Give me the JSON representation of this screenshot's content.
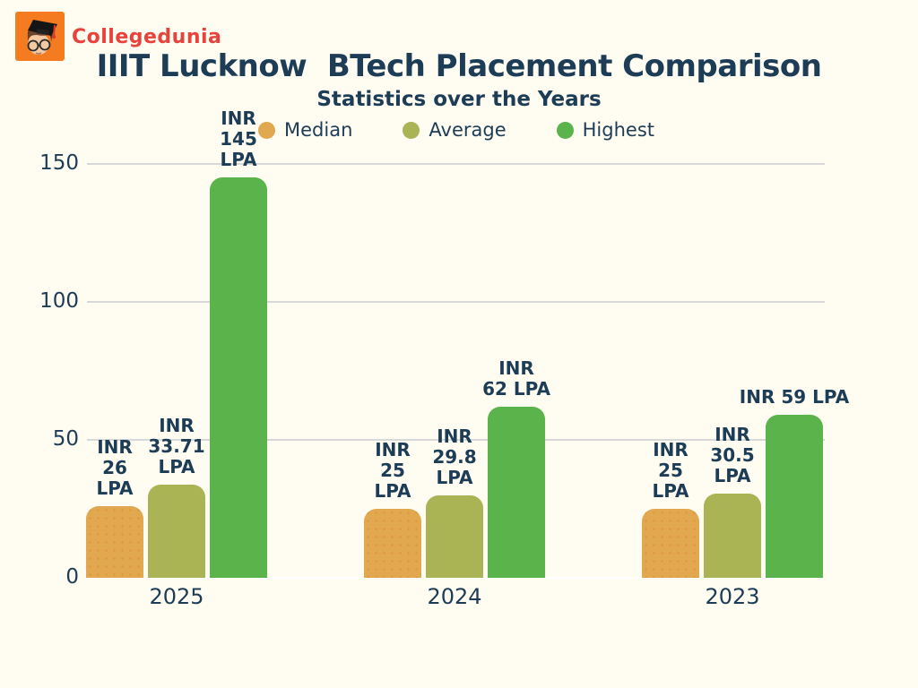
{
  "brand": {
    "name": "Collegedunia",
    "logo_bg": "#f57b20",
    "text_color": "#e8423c"
  },
  "header": {
    "title": "IIIT Lucknow  BTech Placement Comparison",
    "subtitle": "Statistics over the Years"
  },
  "colors": {
    "background": "#fffcf2",
    "text": "#1d3c55",
    "gridline": "#d8d8d8",
    "baseline": "#ffffff",
    "median": "#e2a84f",
    "average": "#abb454",
    "highest": "#5bb34c"
  },
  "chart_data": {
    "type": "bar",
    "title": "IIIT Lucknow  BTech Placement Comparison",
    "subtitle": "Statistics over the Years",
    "categories": [
      "2025",
      "2024",
      "2023"
    ],
    "series": [
      {
        "name": "Median",
        "color": "#e2a84f",
        "values": [
          26,
          25,
          25
        ],
        "labels": [
          [
            "INR",
            "26",
            "LPA"
          ],
          [
            "INR",
            "25",
            "LPA"
          ],
          [
            "INR",
            "25",
            "LPA"
          ]
        ]
      },
      {
        "name": "Average",
        "color": "#abb454",
        "values": [
          33.71,
          29.8,
          30.5
        ],
        "labels": [
          [
            "INR",
            "33.71",
            "LPA"
          ],
          [
            "INR",
            "29.8",
            "LPA"
          ],
          [
            "INR",
            "30.5",
            "LPA"
          ]
        ]
      },
      {
        "name": "Highest",
        "color": "#5bb34c",
        "values": [
          145,
          62,
          59
        ],
        "labels": [
          [
            "INR",
            "145",
            "LPA"
          ],
          [
            "INR",
            "62 LPA"
          ],
          [
            "INR 59 LPA"
          ]
        ]
      }
    ],
    "unit": "INR LPA",
    "y_ticks": [
      0,
      50,
      100,
      150
    ],
    "ylim": [
      0,
      150
    ],
    "grid": true,
    "legend_position": "top"
  }
}
